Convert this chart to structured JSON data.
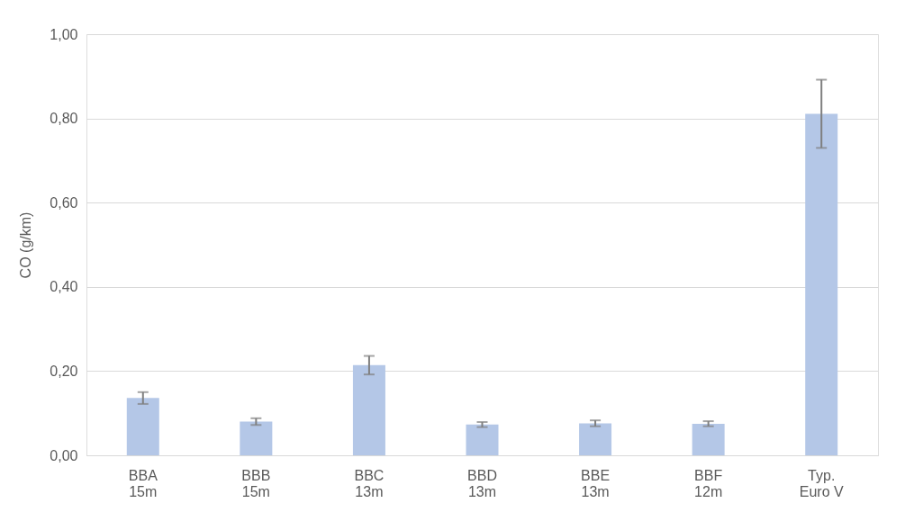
{
  "chart_data": {
    "type": "bar",
    "ylabel": "CO (g/km)",
    "categories": [
      "BBA\n15m",
      "BBB\n15m",
      "BBC\n13m",
      "BBD\n13m",
      "BBE\n13m",
      "BBF\n12m",
      "Typ.\nEuro V"
    ],
    "values": [
      0.136,
      0.08,
      0.214,
      0.073,
      0.076,
      0.075,
      0.811
    ],
    "errors": [
      0.014,
      0.008,
      0.022,
      0.006,
      0.007,
      0.006,
      0.081
    ],
    "color": "#b4c7e7",
    "ylim": [
      0,
      1
    ],
    "yticks": [
      {
        "value": 0,
        "label": "0,00"
      },
      {
        "value": 0.2,
        "label": "0,20"
      },
      {
        "value": 0.4,
        "label": "0,40"
      },
      {
        "value": 0.6,
        "label": "0,60"
      },
      {
        "value": 0.8,
        "label": "0,80"
      },
      {
        "value": 1,
        "label": "1,00"
      }
    ],
    "grid": "y"
  }
}
